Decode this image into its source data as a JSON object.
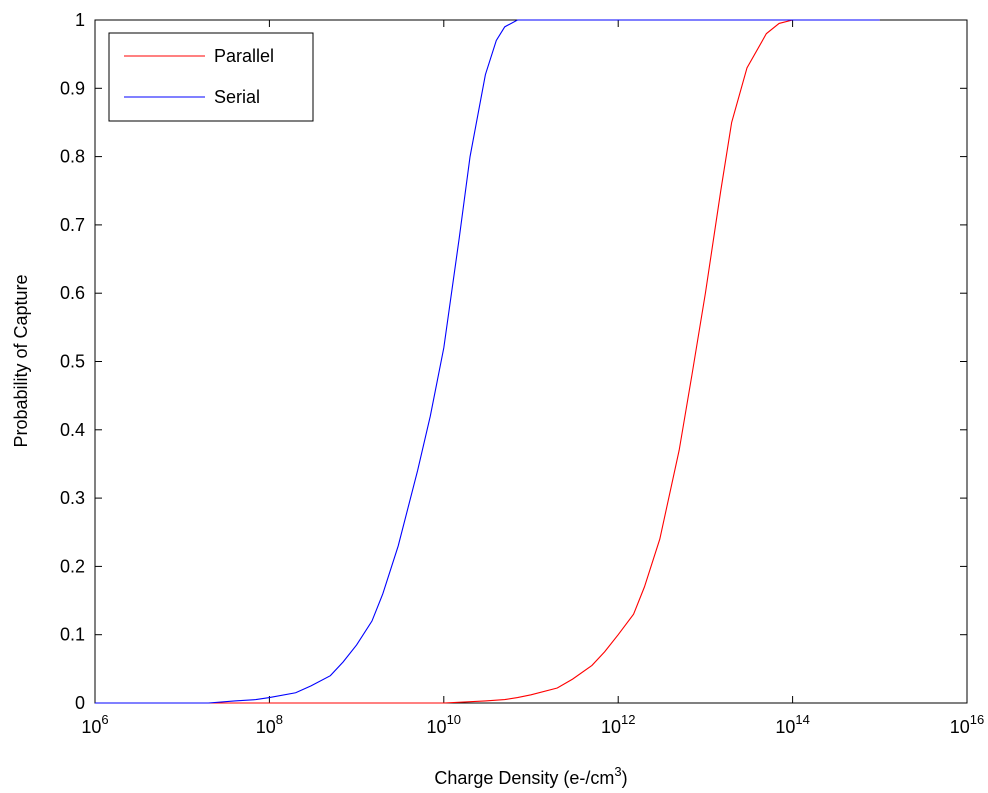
{
  "chart_data": {
    "type": "line",
    "title": "",
    "xlabel": "Charge Density (e-/cm",
    "xlabel_superscript": "3",
    "xlabel_suffix": ")",
    "ylabel": "Probability of Capture",
    "x_scale": "log",
    "xlim": [
      1000000.0,
      1e+16
    ],
    "ylim": [
      0,
      1
    ],
    "x_ticks": [
      {
        "base": "10",
        "exp": "6"
      },
      {
        "base": "10",
        "exp": "8"
      },
      {
        "base": "10",
        "exp": "10"
      },
      {
        "base": "10",
        "exp": "12"
      },
      {
        "base": "10",
        "exp": "14"
      },
      {
        "base": "10",
        "exp": "16"
      }
    ],
    "y_ticks": [
      "0",
      "0.1",
      "0.2",
      "0.3",
      "0.4",
      "0.5",
      "0.6",
      "0.7",
      "0.8",
      "0.9",
      "1"
    ],
    "grid": false,
    "legend_position": "top-left",
    "series": [
      {
        "name": "Parallel",
        "color": "#ff0000",
        "x": [
          1000000.0,
          100000000.0,
          10000000000.0,
          30000000000.0,
          50000000000.0,
          70000000000.0,
          100000000000.0,
          200000000000.0,
          300000000000.0,
          500000000000.0,
          700000000000.0,
          1000000000000.0,
          1500000000000.0,
          2000000000000.0,
          3000000000000.0,
          5000000000000.0,
          7000000000000.0,
          10000000000000.0,
          15000000000000.0,
          20000000000000.0,
          30000000000000.0,
          50000000000000.0,
          70000000000000.0,
          100000000000000.0,
          1000000000000000.0
        ],
        "y": [
          0,
          0,
          0,
          0.003,
          0.005,
          0.008,
          0.012,
          0.022,
          0.035,
          0.055,
          0.075,
          0.1,
          0.13,
          0.17,
          0.24,
          0.37,
          0.48,
          0.6,
          0.75,
          0.85,
          0.93,
          0.98,
          0.995,
          1,
          1
        ]
      },
      {
        "name": "Serial",
        "color": "#0000ff",
        "x": [
          1000000.0,
          20000000.0,
          40000000.0,
          70000000.0,
          100000000.0,
          200000000.0,
          300000000.0,
          500000000.0,
          700000000.0,
          1000000000.0,
          1500000000.0,
          2000000000.0,
          3000000000.0,
          5000000000.0,
          7000000000.0,
          10000000000.0,
          15000000000.0,
          20000000000.0,
          30000000000.0,
          40000000000.0,
          50000000000.0,
          70000000000.0,
          100000000000.0,
          1000000000000000.0
        ],
        "y": [
          0,
          0,
          0.003,
          0.005,
          0.008,
          0.015,
          0.025,
          0.04,
          0.06,
          0.085,
          0.12,
          0.16,
          0.23,
          0.34,
          0.42,
          0.52,
          0.68,
          0.8,
          0.92,
          0.97,
          0.99,
          1,
          1,
          1
        ]
      }
    ]
  }
}
